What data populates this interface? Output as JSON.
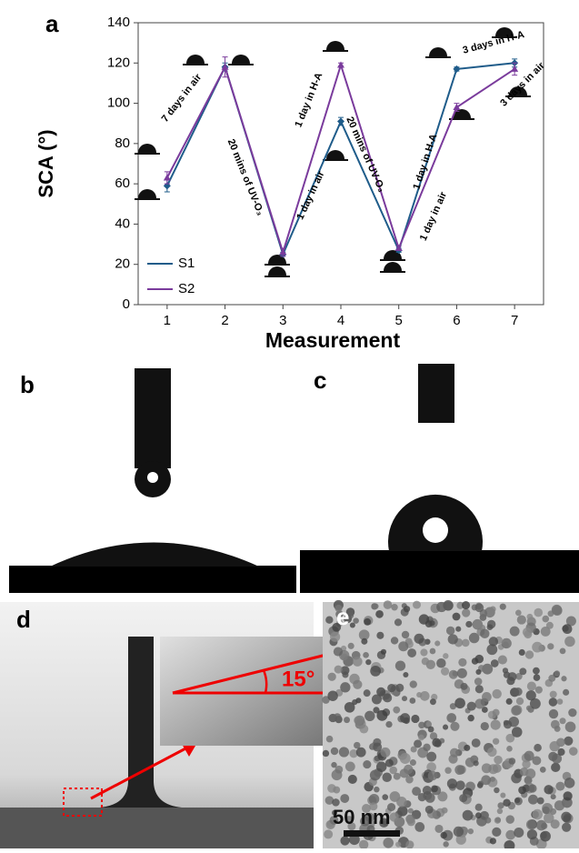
{
  "chart_data": {
    "type": "line",
    "panel_label": "a",
    "y_label": "SCA (°)",
    "x_label": "Measurement",
    "x": [
      1,
      2,
      3,
      4,
      5,
      6,
      7
    ],
    "xlim": [
      0.5,
      7.5
    ],
    "xticks": [
      1,
      2,
      3,
      4,
      5,
      6,
      7
    ],
    "ylim": [
      0,
      140
    ],
    "yticks": [
      0,
      20,
      40,
      60,
      80,
      100,
      120,
      140
    ],
    "series": [
      {
        "name": "S1",
        "color": "#1f5c8a",
        "values": [
          59,
          118,
          25,
          91,
          27,
          117,
          120
        ],
        "errors": [
          3,
          2,
          1,
          2,
          1,
          1,
          2
        ]
      },
      {
        "name": "S2",
        "color": "#7a3b9c",
        "values": [
          63,
          118,
          26,
          119,
          28,
          98,
          117
        ],
        "errors": [
          3,
          5,
          2,
          1,
          1,
          2,
          3
        ]
      }
    ],
    "legend": "lower-left",
    "annotations": [
      "7 days in air",
      "20 mins of UV-O₃",
      "1 day in H-A",
      "1 day in air",
      "20 mins of UV-O₃",
      "1 day in H-A",
      "1 day in air",
      "3 days in H-A",
      "3 days in air"
    ]
  },
  "panels": {
    "b": "b",
    "c": "c",
    "d": "d",
    "angle": "15°",
    "e": "e",
    "scale_bar": "50 nm"
  }
}
